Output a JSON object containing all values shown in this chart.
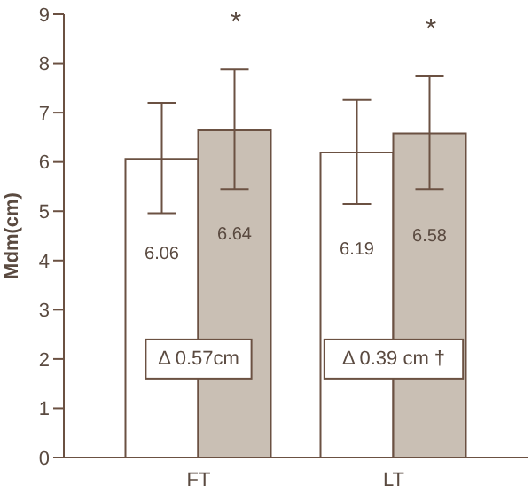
{
  "chart_data": {
    "type": "bar",
    "ylabel": "Mdm(cm)",
    "categories": [
      "FT",
      "LT"
    ],
    "series": [
      {
        "color": "#ffffff",
        "values": [
          6.06,
          6.19
        ],
        "errors": [
          [
            4.96,
            7.2
          ],
          [
            5.15,
            7.26
          ]
        ]
      },
      {
        "color": "#c9bfb4",
        "values": [
          6.64,
          6.58
        ],
        "errors": [
          [
            5.45,
            7.88
          ],
          [
            5.45,
            7.74
          ]
        ]
      }
    ],
    "ylim": [
      0,
      9
    ],
    "yticks": [
      0,
      1,
      2,
      3,
      4,
      5,
      6,
      7,
      8,
      9
    ],
    "grid": false,
    "legend": false,
    "data_labels": true,
    "annotations": [
      "*",
      "*",
      {
        "text": "Δ 0.57cm",
        "x": "FT",
        "y": 2
      },
      {
        "text": "Δ 0.39 cm †",
        "x": "LT",
        "y": 2
      }
    ]
  }
}
